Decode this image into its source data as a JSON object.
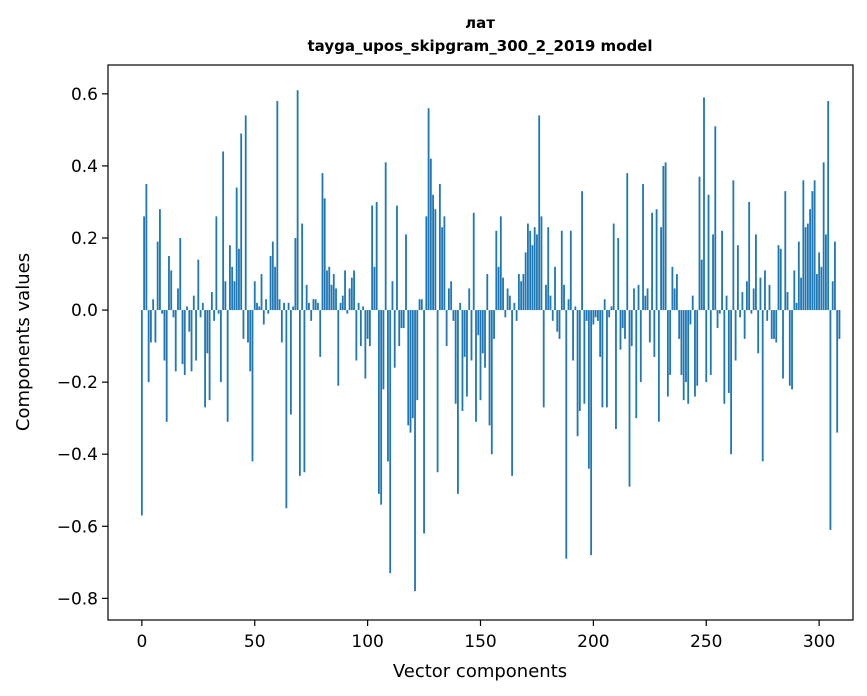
{
  "chart_data": {
    "type": "bar",
    "title": "лат",
    "subtitle": "tayga_upos_skipgram_300_2_2019 model",
    "xlabel": "Vector components",
    "ylabel": "Components values",
    "xlim": [
      -15,
      315
    ],
    "ylim": [
      -0.86,
      0.68
    ],
    "xticks": [
      0,
      50,
      100,
      150,
      200,
      250,
      300
    ],
    "xtick_labels": [
      "0",
      "50",
      "100",
      "150",
      "200",
      "250",
      "300"
    ],
    "yticks": [
      0.6,
      0.4,
      0.2,
      0.0,
      -0.2,
      -0.4,
      -0.6,
      -0.8
    ],
    "ytick_labels": [
      "0.6",
      "0.4",
      "0.2",
      "0.0",
      "−0.2",
      "−0.4",
      "−0.6",
      "−0.8"
    ],
    "bar_color": "#1f77b4",
    "grid": false,
    "legend": "none",
    "values": [
      -0.57,
      0.26,
      0.35,
      -0.2,
      -0.09,
      0.03,
      -0.09,
      0.19,
      0.28,
      -0.01,
      -0.14,
      -0.31,
      0.15,
      0.11,
      -0.02,
      -0.17,
      0.06,
      0.2,
      -0.15,
      -0.18,
      0.01,
      -0.06,
      -0.17,
      0.04,
      -0.14,
      0.14,
      -0.02,
      0.02,
      -0.27,
      -0.12,
      -0.25,
      0.05,
      -0.03,
      0.26,
      -0.01,
      -0.2,
      0.44,
      0.08,
      -0.31,
      0.18,
      0.12,
      0.08,
      0.34,
      0.17,
      0.49,
      -0.08,
      0.54,
      -0.09,
      -0.17,
      -0.42,
      0.08,
      0.02,
      0.01,
      0.1,
      -0.04,
      0.03,
      -0.01,
      0.15,
      0.19,
      0.12,
      0.58,
      0.03,
      -0.09,
      0.02,
      -0.55,
      0.02,
      -0.29,
      0.01,
      0.2,
      0.61,
      -0.46,
      0.24,
      -0.45,
      0.07,
      0.02,
      -0.03,
      0.03,
      0.03,
      0.02,
      -0.13,
      0.38,
      0.31,
      0.11,
      0.12,
      0.07,
      0.1,
      0.06,
      -0.21,
      0.02,
      0.04,
      0.11,
      -0.01,
      0.06,
      0.09,
      0.11,
      -0.14,
      0.02,
      -0.1,
      0.01,
      -0.19,
      -0.08,
      -0.1,
      0.29,
      0.12,
      0.3,
      -0.51,
      -0.54,
      -0.22,
      0.41,
      -0.42,
      -0.73,
      0.08,
      -0.16,
      0.29,
      -0.1,
      -0.05,
      -0.05,
      0.21,
      -0.32,
      -0.34,
      -0.3,
      -0.78,
      -0.25,
      0.03,
      0.03,
      -0.62,
      0.26,
      0.56,
      0.42,
      0.32,
      0.28,
      -0.45,
      0.35,
      0.23,
      0.26,
      -0.1,
      0.06,
      0.08,
      -0.03,
      -0.26,
      -0.51,
      0.02,
      -0.28,
      -0.13,
      -0.24,
      0.06,
      -0.14,
      0.27,
      -0.31,
      -0.07,
      -0.25,
      -0.12,
      -0.16,
      0.1,
      -0.32,
      -0.4,
      -0.08,
      0.22,
      0.12,
      0.26,
      0.09,
      -0.02,
      0.06,
      0.04,
      -0.46,
      0.02,
      -0.03,
      0.1,
      0.08,
      0.1,
      0.16,
      0.24,
      0.22,
      0.18,
      0.23,
      0.21,
      0.54,
      0.26,
      -0.27,
      0.07,
      0.23,
      0.04,
      -0.03,
      0.12,
      -0.06,
      -0.08,
      0.22,
      0.07,
      -0.69,
      0.03,
      0.22,
      -0.14,
      0.01,
      -0.35,
      -0.28,
      0.33,
      -0.26,
      -0.03,
      -0.44,
      -0.68,
      -0.04,
      -0.02,
      -0.03,
      -0.13,
      -0.27,
      0.03,
      -0.27,
      -0.02,
      0.01,
      0.24,
      -0.33,
      0.2,
      -0.11,
      -0.05,
      -0.08,
      0.38,
      -0.49,
      -0.1,
      0.06,
      -0.3,
      0.07,
      -0.2,
      0.35,
      0.04,
      0.06,
      -0.09,
      0.27,
      -0.13,
      0.28,
      -0.31,
      0.23,
      0.4,
      0.41,
      -0.24,
      -0.18,
      0.12,
      0.06,
      0.1,
      -0.08,
      -0.18,
      -0.25,
      -0.2,
      -0.26,
      -0.04,
      0.04,
      -0.24,
      -0.21,
      0.37,
      0.14,
      0.59,
      -0.2,
      0.32,
      -0.18,
      0.21,
      0.51,
      -0.05,
      -0.01,
      0.22,
      -0.26,
      0.04,
      -0.23,
      -0.4,
      0.36,
      -0.14,
      0.18,
      -0.02,
      0.05,
      -0.08,
      0.08,
      0.3,
      -0.01,
      0.06,
      0.21,
      -0.12,
      0.09,
      -0.42,
      0.11,
      -0.03,
      0.07,
      -0.08,
      -0.08,
      -0.09,
      0.18,
      0.17,
      -0.19,
      0.33,
      0.05,
      -0.21,
      -0.22,
      0.11,
      0.02,
      0.19,
      0.09,
      0.36,
      0.23,
      0.24,
      0.28,
      0.33,
      0.36,
      0.1,
      0.16,
      0.12,
      0.41,
      0.21,
      0.58,
      -0.61,
      0.08,
      0.19,
      -0.34,
      -0.08
    ]
  }
}
